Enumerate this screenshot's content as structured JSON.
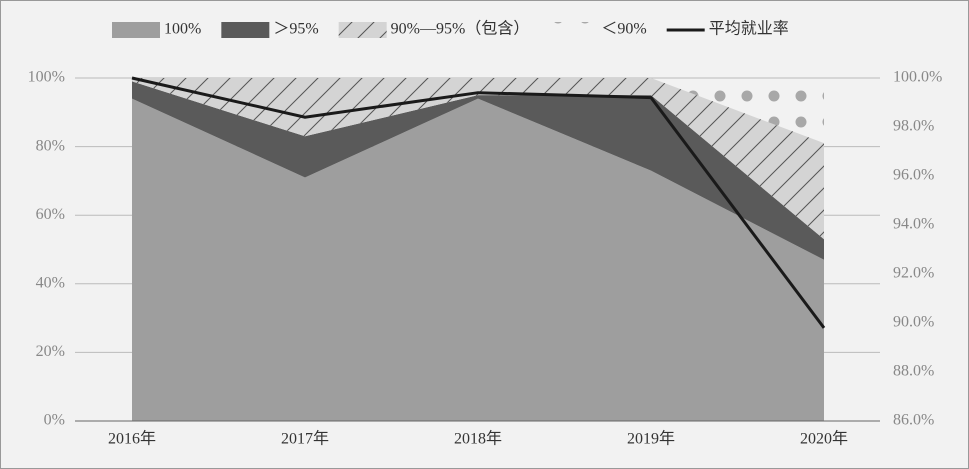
{
  "chart_data": {
    "type": "area",
    "stacked": true,
    "categories": [
      "2016年",
      "2017年",
      "2018年",
      "2019年",
      "2020年"
    ],
    "series": [
      {
        "name": "100%",
        "color": "#9e9e9e",
        "values": [
          94,
          71,
          94,
          73,
          47
        ]
      },
      {
        "name": "＞95%",
        "color": "#5a5a5a",
        "values": [
          5,
          12,
          1,
          22,
          6
        ]
      },
      {
        "name": "90%—95%（包含）",
        "color": "#d4d4d4",
        "pattern": "hatch",
        "values": [
          1,
          17,
          5,
          5,
          28
        ]
      },
      {
        "name": "＜90%",
        "color": "#a8a8a8",
        "pattern": "dots",
        "values": [
          0,
          0,
          0,
          0,
          19
        ]
      },
      {
        "name": "平均就业率",
        "color": "#1a1a1a",
        "type": "line",
        "axis": "y2",
        "values": [
          100.0,
          98.4,
          99.4,
          99.2,
          89.8
        ]
      }
    ],
    "ylim": [
      0,
      100
    ],
    "yticks": [
      {
        "value": 0,
        "label": "0%"
      },
      {
        "value": 20,
        "label": "20%"
      },
      {
        "value": 40,
        "label": "40%"
      },
      {
        "value": 60,
        "label": "60%"
      },
      {
        "value": 80,
        "label": "80%"
      },
      {
        "value": 100,
        "label": "100%"
      }
    ],
    "y2lim": [
      86,
      100
    ],
    "y2ticks": [
      {
        "value": 86,
        "label": "86.0%"
      },
      {
        "value": 88,
        "label": "88.0%"
      },
      {
        "value": 90,
        "label": "90.0%"
      },
      {
        "value": 92,
        "label": "92.0%"
      },
      {
        "value": 94,
        "label": "94.0%"
      },
      {
        "value": 96,
        "label": "96.0%"
      },
      {
        "value": 98,
        "label": "98.0%"
      },
      {
        "value": 100,
        "label": "100.0%"
      }
    ],
    "grid": true,
    "legend": "top"
  }
}
